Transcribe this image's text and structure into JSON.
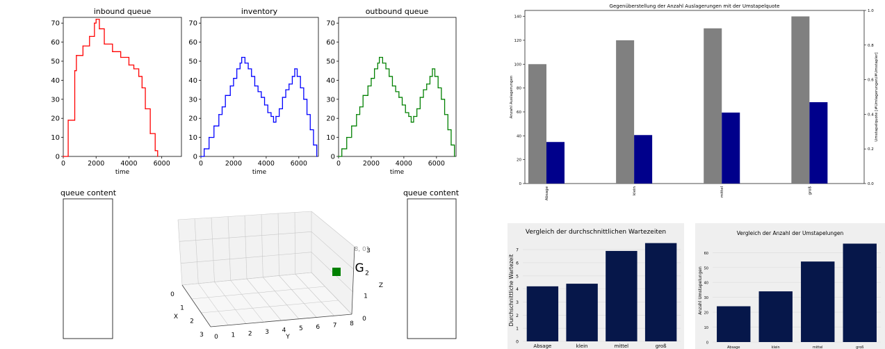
{
  "panels": {
    "inbound": {
      "title": "inbound queue",
      "xlabel": "time",
      "color": "#ff0000"
    },
    "inventory": {
      "title": "inventory",
      "xlabel": "time",
      "color": "#0000ff"
    },
    "outbound": {
      "title": "outbound queue",
      "xlabel": "time",
      "color": "#008000"
    },
    "queue_left": {
      "title": "queue content"
    },
    "queue_right": {
      "title": "queue content"
    },
    "view3d": {
      "crane_label": "RMG",
      "crane_coord": "[1.0, 8, 0]",
      "crane_color": "#008000",
      "x_label": "X",
      "y_label": "Y",
      "z_label": "Z",
      "x_ticks": [
        "0",
        "1",
        "2",
        "3"
      ],
      "y_ticks": [
        "0",
        "1",
        "2",
        "3",
        "4",
        "5",
        "6",
        "7",
        "8"
      ],
      "z_ticks": [
        "0",
        "1",
        "2",
        "3"
      ]
    }
  },
  "chart_data": [
    {
      "type": "line",
      "title": "inbound queue",
      "xlabel": "time",
      "ylabel": "",
      "xlim": [
        0,
        7200
      ],
      "ylim": [
        0,
        73
      ],
      "xticks": [
        "0",
        "2000",
        "4000",
        "6000"
      ],
      "yticks": [
        "0",
        "10",
        "20",
        "30",
        "40",
        "50",
        "60",
        "70"
      ],
      "x": [
        0,
        300,
        700,
        800,
        1200,
        1600,
        1900,
        2000,
        2200,
        2500,
        3000,
        3500,
        4000,
        4300,
        4600,
        4800,
        5000,
        5300,
        5600,
        5750
      ],
      "y": [
        0,
        19,
        45,
        53,
        58,
        63,
        70,
        72,
        67,
        59,
        55,
        52,
        48,
        46,
        42,
        36,
        25,
        12,
        3,
        0
      ]
    },
    {
      "type": "line",
      "title": "inventory",
      "xlabel": "time",
      "ylabel": "",
      "xlim": [
        0,
        7200
      ],
      "ylim": [
        0,
        73
      ],
      "xticks": [
        "0",
        "2000",
        "4000",
        "6000"
      ],
      "yticks": [
        "0",
        "10",
        "20",
        "30",
        "40",
        "50",
        "60",
        "70"
      ],
      "x": [
        0,
        200,
        500,
        800,
        1100,
        1300,
        1500,
        1800,
        2000,
        2200,
        2400,
        2500,
        2700,
        2900,
        3100,
        3300,
        3500,
        3700,
        3900,
        4100,
        4300,
        4450,
        4600,
        4800,
        5000,
        5200,
        5400,
        5600,
        5750,
        5900,
        6100,
        6300,
        6500,
        6700,
        6900,
        7100
      ],
      "y": [
        0,
        4,
        10,
        16,
        22,
        26,
        32,
        37,
        41,
        46,
        49,
        52,
        49,
        46,
        42,
        37,
        34,
        31,
        27,
        23,
        21,
        18,
        21,
        25,
        31,
        35,
        38,
        42,
        46,
        42,
        36,
        30,
        22,
        14,
        6,
        0
      ]
    },
    {
      "type": "line",
      "title": "outbound queue",
      "xlabel": "time",
      "ylabel": "",
      "xlim": [
        0,
        7200
      ],
      "ylim": [
        0,
        73
      ],
      "xticks": [
        "0",
        "2000",
        "4000",
        "6000"
      ],
      "yticks": [
        "0",
        "10",
        "20",
        "30",
        "40",
        "50",
        "60",
        "70"
      ],
      "x": [
        0,
        200,
        500,
        800,
        1100,
        1300,
        1500,
        1800,
        2000,
        2200,
        2400,
        2500,
        2700,
        2900,
        3100,
        3300,
        3500,
        3700,
        3900,
        4100,
        4300,
        4450,
        4600,
        4800,
        5000,
        5200,
        5400,
        5600,
        5750,
        5900,
        6100,
        6300,
        6500,
        6700,
        6900,
        7100
      ],
      "y": [
        0,
        4,
        10,
        16,
        22,
        26,
        32,
        37,
        41,
        46,
        49,
        52,
        49,
        46,
        42,
        37,
        34,
        31,
        27,
        23,
        21,
        18,
        21,
        25,
        31,
        35,
        38,
        42,
        46,
        42,
        36,
        30,
        22,
        14,
        6,
        0
      ]
    },
    {
      "type": "bar",
      "title": "Gegenüberstellung der Anzahl Auslagerungen mit der Umstapelquote",
      "categories": [
        "Absage",
        "klein",
        "mittel",
        "groß"
      ],
      "ylabel": "Anzahl Auslagerungen",
      "ylabel_right": "Umstapelquote [#Umlagerungen/#Umstapler]",
      "ylim": [
        0,
        145
      ],
      "yticks": [
        "0",
        "20",
        "40",
        "60",
        "80",
        "100",
        "120",
        "140"
      ],
      "ylim_right": [
        0,
        1.0
      ],
      "yticks_right": [
        "0.0",
        "0.2",
        "0.4",
        "0.6",
        "0.8",
        "1.0"
      ],
      "series": [
        {
          "values": [
            100,
            120,
            130,
            140
          ],
          "color": "#808080",
          "axis": "left"
        },
        {
          "values": [
            0.24,
            0.28,
            0.41,
            0.47
          ],
          "color": "#00008b",
          "axis": "right"
        }
      ]
    },
    {
      "type": "bar",
      "title": "Vergleich der durchschnittlichen Wartezeiten",
      "categories": [
        "Absage",
        "klein",
        "mittel",
        "groß"
      ],
      "ylabel": "Durchschnittliche Wartezeit",
      "ylim": [
        0,
        7.8
      ],
      "yticks": [
        "0",
        "1",
        "2",
        "3",
        "4",
        "5",
        "6",
        "7"
      ],
      "values": [
        4.2,
        4.4,
        6.9,
        7.5
      ],
      "color": "#06174a",
      "background": "#efefef"
    },
    {
      "type": "bar",
      "title": "Vergleich der Anzahl der Umstapelungen",
      "categories": [
        "Absage",
        "klein",
        "mittel",
        "groß"
      ],
      "ylabel": "Anzahl Umstapelungen",
      "ylim": [
        0,
        69
      ],
      "yticks": [
        "0",
        "10",
        "20",
        "30",
        "40",
        "50",
        "60"
      ],
      "values": [
        24,
        34,
        54,
        66
      ],
      "color": "#06174a",
      "background": "#efefef"
    }
  ]
}
